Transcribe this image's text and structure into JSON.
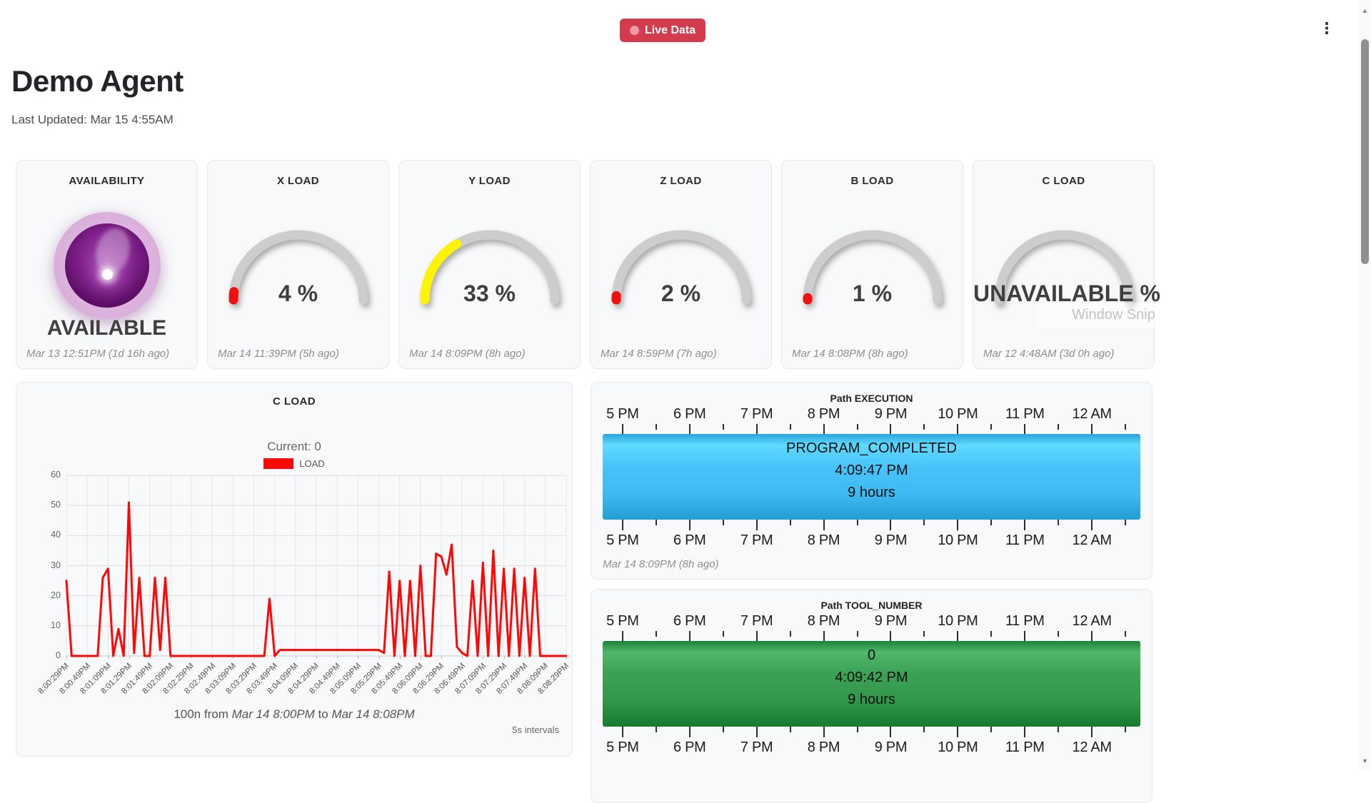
{
  "watermark": "Window Snip",
  "header": {
    "live_badge": "Live Data",
    "badge_color": "#d23c4e",
    "menu_icon": "⋮",
    "title": "Demo Agent",
    "last_updated": "Last Updated: Mar 15 4:55AM"
  },
  "gauges": [
    {
      "title": "AVAILABILITY",
      "kind": "orb",
      "value_label": "AVAILABLE",
      "orb_color": "#84238f",
      "timestamp": "Mar 13 12:51PM (1d 16h ago)"
    },
    {
      "title": "X LOAD",
      "kind": "gauge",
      "percent": 4,
      "value_label": "4 %",
      "color": "#ee1111",
      "timestamp": "Mar 14 11:39PM (5h ago)"
    },
    {
      "title": "Y LOAD",
      "kind": "gauge",
      "percent": 33,
      "value_label": "33 %",
      "color": "#fdf400",
      "timestamp": "Mar 14 8:09PM (8h ago)"
    },
    {
      "title": "Z LOAD",
      "kind": "gauge",
      "percent": 2,
      "value_label": "2 %",
      "color": "#ee1111",
      "timestamp": "Mar 14 8:59PM (7h ago)"
    },
    {
      "title": "B LOAD",
      "kind": "gauge",
      "percent": 1,
      "value_label": "1 %",
      "color": "#ee1111",
      "timestamp": "Mar 14 8:08PM (8h ago)"
    },
    {
      "title": "C LOAD",
      "kind": "gauge",
      "percent": 0,
      "value_label": "UNAVAILABLE %",
      "color": null,
      "timestamp": "Mar 12 4:48AM (3d 0h ago)"
    }
  ],
  "chart_data": {
    "type": "line",
    "title": "C LOAD",
    "current_label": "Current: 0",
    "legend": [
      {
        "label": "LOAD",
        "color": "#ff0707"
      }
    ],
    "ylim": [
      0,
      60
    ],
    "y_ticks": [
      0,
      10,
      20,
      30,
      40,
      50,
      60
    ],
    "x_tick_labels": [
      "8:00:29PM",
      "8:00:49PM",
      "8:01:09PM",
      "8:01:29PM",
      "8:01:49PM",
      "8:02:09PM",
      "8:02:29PM",
      "8:02:49PM",
      "8:03:09PM",
      "8:03:29PM",
      "8:03:49PM",
      "8:04:09PM",
      "8:04:29PM",
      "8:04:49PM",
      "8:05:09PM",
      "8:05:29PM",
      "8:05:49PM",
      "8:06:09PM",
      "8:06:29PM",
      "8:06:49PM",
      "8:07:09PM",
      "8:07:29PM",
      "8:07:49PM",
      "8:08:09PM",
      "8:08:29PM"
    ],
    "values": [
      25,
      0,
      0,
      0,
      0,
      0,
      0,
      26,
      29,
      0,
      9,
      0,
      51,
      1,
      26,
      0,
      0,
      26,
      2,
      26,
      0,
      0,
      0,
      0,
      0,
      0,
      0,
      0,
      0,
      0,
      0,
      0,
      0,
      0,
      0,
      0,
      0,
      0,
      0,
      19,
      0,
      2,
      2,
      2,
      2,
      2,
      2,
      2,
      2,
      2,
      2,
      2,
      2,
      2,
      2,
      2,
      2,
      2,
      2,
      2,
      2,
      1,
      28,
      0,
      25,
      0,
      25,
      0,
      30,
      0,
      0,
      34,
      33,
      27,
      37,
      3,
      1,
      0,
      25,
      0,
      31,
      0,
      35,
      0,
      29,
      0,
      29,
      0,
      26,
      0,
      29,
      0,
      0,
      0,
      0,
      0,
      0
    ],
    "grid": true,
    "caption": {
      "prefix": "100n from ",
      "start": "Mar 14 8:00PM",
      "mid": " to ",
      "end": "Mar 14 8:08PM"
    },
    "interval_note": "5s intervals"
  },
  "timelines": [
    {
      "title": "Path EXECUTION",
      "hours": [
        "5 PM",
        "6 PM",
        "7 PM",
        "8 PM",
        "9 PM",
        "10 PM",
        "11 PM",
        "12 AM"
      ],
      "bar": {
        "label": "PROGRAM_COMPLETED",
        "time": "4:09:47 PM",
        "duration": "9 hours",
        "color": "#41bcf3"
      },
      "timestamp": "Mar 14 8:09PM (8h ago)"
    },
    {
      "title": "Path TOOL_NUMBER",
      "hours": [
        "5 PM",
        "6 PM",
        "7 PM",
        "8 PM",
        "9 PM",
        "10 PM",
        "11 PM",
        "12 AM"
      ],
      "bar": {
        "label": "0",
        "time": "4:09:42 PM",
        "duration": "9 hours",
        "color": "#33994d"
      }
    }
  ],
  "scrollbar": {
    "up_icon": "▲",
    "down_icon": "▼"
  }
}
